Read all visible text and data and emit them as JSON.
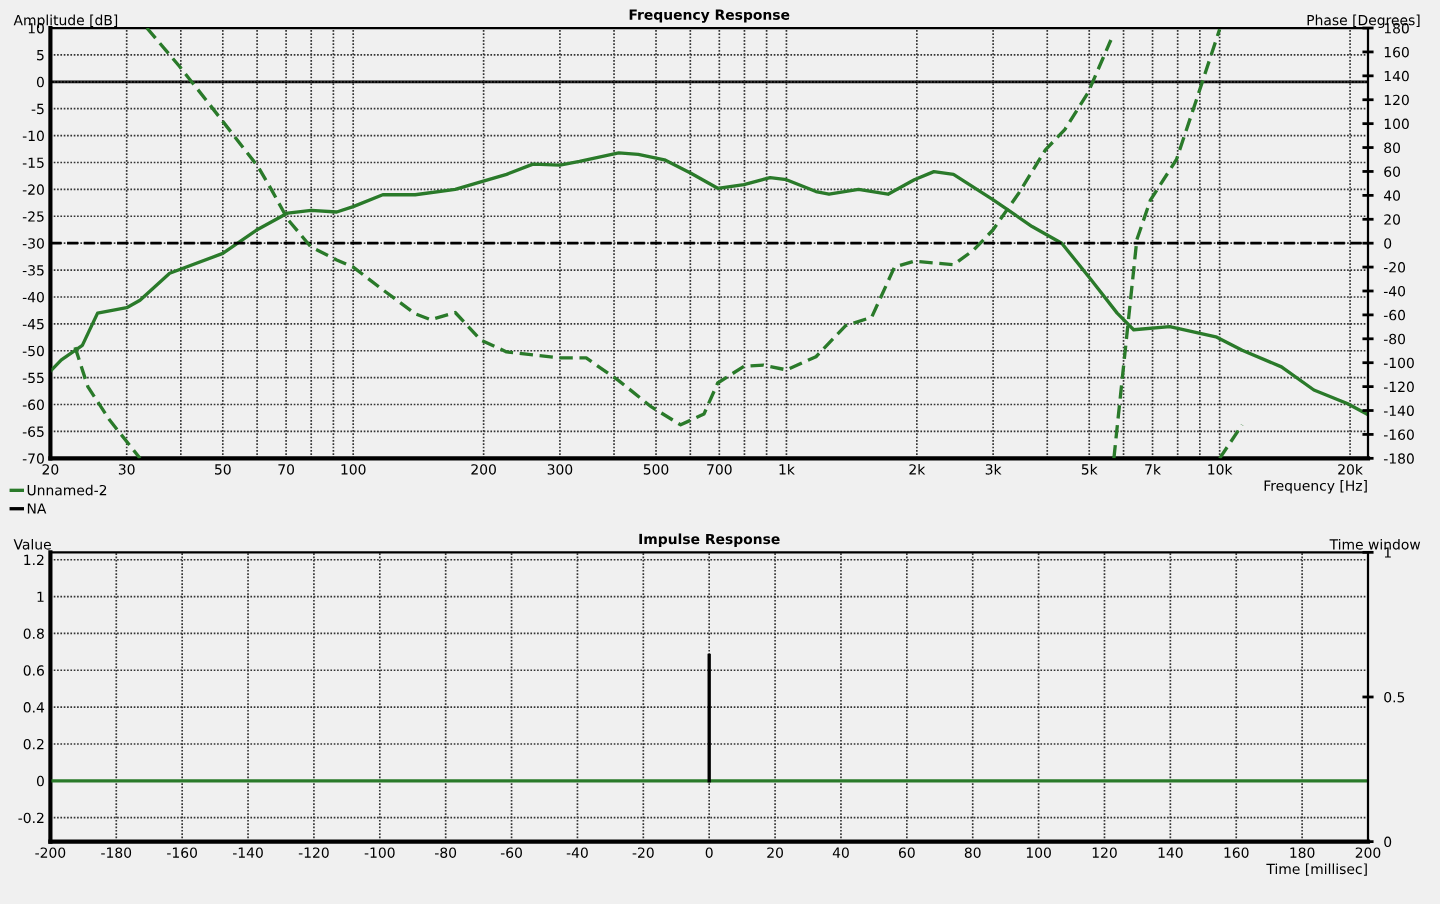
{
  "chart_data": [
    {
      "type": "line",
      "title": "Frequency Response",
      "xlabel": "Frequency [Hz]",
      "ylabel": "Amplitude [dB]",
      "y2label": "Phase [Degrees]",
      "log": "x",
      "grid": true,
      "legend": "bottom left",
      "xlim": [
        20,
        22000
      ],
      "ylim": [
        -70,
        10
      ],
      "y2lim": [
        -180,
        180
      ],
      "xticks": [
        20,
        30,
        {
          "value": 40,
          "label": null
        },
        50,
        {
          "value": 60,
          "label": null
        },
        70,
        {
          "value": 80,
          "label": null
        },
        {
          "value": 90,
          "label": null
        },
        100,
        200,
        300,
        {
          "value": 400,
          "label": null
        },
        500,
        {
          "value": 600,
          "label": null
        },
        700,
        {
          "value": 800,
          "label": null
        },
        {
          "value": 900,
          "label": null
        },
        {
          "value": 1000,
          "label": "1k"
        },
        {
          "value": 2000,
          "label": "2k"
        },
        {
          "value": 3000,
          "label": "3k"
        },
        {
          "value": 4000,
          "label": null
        },
        {
          "value": 5000,
          "label": "5k"
        },
        {
          "value": 6000,
          "label": null
        },
        {
          "value": 7000,
          "label": "7k"
        },
        {
          "value": 8000,
          "label": null
        },
        {
          "value": 9000,
          "label": null
        },
        {
          "value": 10000,
          "label": "10k"
        },
        {
          "value": 20000,
          "label": "20k"
        }
      ],
      "yticks": [
        -70,
        -65,
        -60,
        -55,
        -50,
        -45,
        -40,
        -35,
        -30,
        -25,
        -20,
        -15,
        -10,
        -5,
        0,
        5,
        10
      ],
      "y2ticks": [
        -180,
        -160,
        -140,
        -120,
        -100,
        -80,
        -60,
        -40,
        -20,
        0,
        20,
        40,
        60,
        80,
        100,
        120,
        140,
        160,
        180
      ],
      "ref_lines": [
        {
          "axis": "y",
          "value": 0,
          "color": "#000000",
          "line_style": "solid"
        },
        {
          "axis": "y2",
          "value": 0,
          "color": "#000000",
          "line_style": "dashed"
        }
      ],
      "series": [
        {
          "name": "Unnamed-2",
          "color": "#2a7a2a",
          "line_style": "solid",
          "x": [
            20,
            21.2,
            23.7,
            25.7,
            30,
            32.2,
            37.7,
            50,
            60,
            70.6,
            80,
            91.6,
            100,
            117,
            139,
            172,
            197,
            226,
            260,
            300,
            333,
            410,
            455,
            523,
            602,
            694,
            798,
            917,
            1000,
            1170,
            1254,
            1467,
            1716,
            1973,
            2190,
            2430,
            2996,
            3690,
            4320,
            5050,
            5800,
            6330,
            7670,
            9800,
            11270,
            13890,
            16500,
            19700,
            21800
          ],
          "values": [
            -53.8,
            -51.7,
            -49,
            -43,
            -42,
            -40.6,
            -35.6,
            -31.9,
            -27.5,
            -24.4,
            -23.9,
            -24.2,
            -23.2,
            -21,
            -21,
            -20,
            -18.6,
            -17.2,
            -15.3,
            -15.5,
            -14.8,
            -13.2,
            -13.5,
            -14.5,
            -17,
            -19.8,
            -19.1,
            -17.8,
            -18.2,
            -20.4,
            -20.9,
            -20,
            -20.9,
            -18.2,
            -16.7,
            -17.2,
            -21.9,
            -26.9,
            -30,
            -36.8,
            -43,
            -46.1,
            -45.5,
            -47.4,
            -49.9,
            -53,
            -57.3,
            -59.8,
            -61.7
          ]
        },
        {
          "color": "#2a7a2a",
          "line_style": "dashed",
          "axis": "y2",
          "x": [
            22.8,
            24.4,
            27.4,
            32.2
          ],
          "values": [
            -87,
            -120,
            -148,
            -180
          ]
        },
        {
          "color": "#2a7a2a",
          "line_style": "dashed",
          "axis": "y2",
          "x": [
            33.4,
            39.7,
            45.7,
            52.5,
            60.3,
            64.7,
            70.6,
            79.8,
            91.6,
            100,
            117,
            139,
            151,
            172,
            197,
            226,
            300,
            345,
            410,
            488,
            570,
            645,
            694,
            798,
            885,
            1000,
            1170,
            1370,
            1573,
            1776,
            1973,
            2430,
            2700,
            2996,
            3440,
            3960,
            4390,
            4970,
            5610
          ],
          "values": [
            180,
            148,
            120,
            92,
            64,
            45,
            20,
            -3,
            -14,
            -20,
            -39,
            -59,
            -64,
            -58,
            -81,
            -91,
            -96,
            -96,
            -115,
            -137,
            -152,
            -143,
            -117,
            -103,
            -102,
            -106,
            -95,
            -69,
            -62,
            -20,
            -15,
            -18,
            -6,
            11,
            42,
            78,
            95,
            126,
            170
          ]
        },
        {
          "color": "#2a7a2a",
          "line_style": "dashed",
          "axis": "y2",
          "x": [
            5700,
            6440,
            6920,
            7950,
            8840,
            10000
          ],
          "values": [
            -180,
            3,
            36,
            70,
            120,
            179
          ]
        },
        {
          "color": "#2a7a2a",
          "line_style": "dashed",
          "axis": "y2",
          "x": [
            10000,
            11270
          ],
          "values": [
            -180,
            -152
          ]
        }
      ]
    },
    {
      "type": "line",
      "title": "Impulse Response",
      "xlabel": "Time [millisec]",
      "ylabel": "Value",
      "y2label": "Time window",
      "grid": true,
      "legend": "top left",
      "xlim": [
        -200,
        200
      ],
      "ylim": [
        -0.33,
        1.24
      ],
      "y2lim": [
        0,
        1
      ],
      "xticks": [
        -200,
        -180,
        -160,
        -140,
        -120,
        -100,
        -80,
        -60,
        -40,
        -20,
        0,
        20,
        40,
        60,
        80,
        100,
        120,
        140,
        160,
        180,
        200
      ],
      "yticks": [
        -0.2,
        0,
        0.2,
        0.4,
        0.6,
        0.8,
        1,
        1.2
      ],
      "y2ticks": [
        0,
        0.5,
        1
      ],
      "series": [
        {
          "color": "#2a7a2a",
          "line_style": "solid",
          "x": [
            -200,
            200
          ],
          "values": [
            0,
            0
          ]
        },
        {
          "name": "NA",
          "color": "#000000",
          "line_style": "solid",
          "x": [
            0,
            0
          ],
          "values": [
            0,
            0.68
          ]
        }
      ]
    }
  ]
}
